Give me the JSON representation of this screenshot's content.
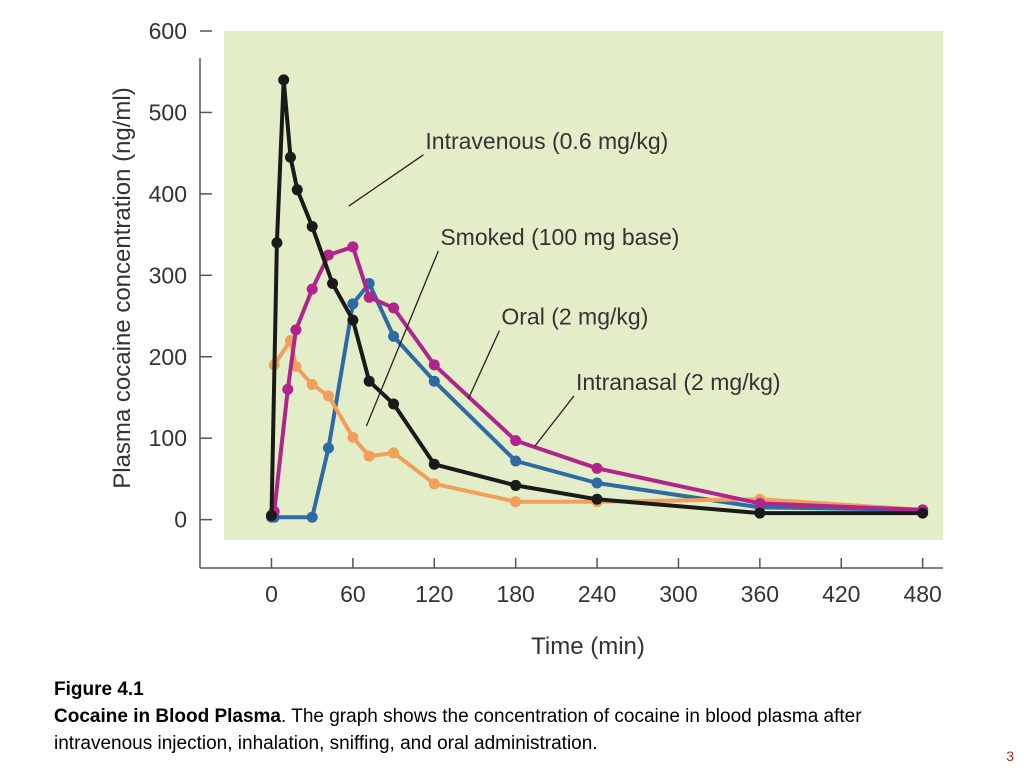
{
  "chart_data": {
    "type": "line",
    "xlabel": "Time (min)",
    "ylabel": "Plasma cocaine concentration (ng/ml)",
    "xlim": [
      -35,
      495
    ],
    "ylim": [
      -25,
      600
    ],
    "xticks": [
      0,
      60,
      120,
      180,
      240,
      300,
      360,
      420,
      480
    ],
    "yticks": [
      0,
      100,
      200,
      300,
      400,
      500,
      600
    ],
    "grid": false,
    "plot_background": "#e3eec8",
    "series": [
      {
        "name": "Intravenous (0.6 mg/kg)",
        "color": "#1a1a1a",
        "x": [
          0,
          4,
          9,
          14,
          19,
          30,
          45,
          60,
          72,
          90,
          120,
          180,
          240,
          360,
          480
        ],
        "y": [
          5,
          340,
          540,
          445,
          405,
          360,
          290,
          245,
          170,
          142,
          68,
          42,
          25,
          8,
          8
        ]
      },
      {
        "name": "Smoked (100 mg base)",
        "color": "#b0248c",
        "x": [
          0,
          2,
          12,
          18,
          30,
          42,
          60,
          72,
          90,
          120,
          180,
          240,
          360,
          480
        ],
        "y": [
          5,
          10,
          160,
          233,
          283,
          325,
          335,
          273,
          260,
          190,
          97,
          63,
          20,
          12
        ]
      },
      {
        "name": "Oral (2 mg/kg)",
        "color": "#2e6aa4",
        "x": [
          0,
          2,
          30,
          42,
          60,
          72,
          90,
          120,
          180,
          240,
          360,
          480
        ],
        "y": [
          3,
          3,
          3,
          88,
          265,
          290,
          225,
          170,
          72,
          45,
          15,
          12
        ]
      },
      {
        "name": "Intranasal (2 mg/kg)",
        "color": "#f0a05a",
        "x": [
          2,
          14,
          18,
          30,
          42,
          60,
          72,
          90,
          120,
          180,
          240,
          360,
          480
        ],
        "y": [
          190,
          220,
          188,
          166,
          152,
          101,
          78,
          82,
          44,
          22,
          22,
          25,
          12
        ]
      }
    ],
    "annotations": [
      {
        "text": "Intravenous (0.6 mg/kg)",
        "series": 0,
        "from": [
          57,
          385
        ],
        "to": [
          112,
          448
        ]
      },
      {
        "text": "Smoked (100 mg base)",
        "series": 1,
        "from": [
          70,
          115
        ],
        "to": [
          123,
          330
        ]
      },
      {
        "text": "Oral (2 mg/kg)",
        "series": 2,
        "from": [
          145,
          148
        ],
        "to": [
          168,
          232
        ]
      },
      {
        "text": "Intranasal (2 mg/kg)",
        "series": 3,
        "from": [
          194,
          90
        ],
        "to": [
          223,
          152
        ]
      }
    ]
  },
  "caption": {
    "figure_number": "Figure 4.1",
    "figure_title": "Cocaine in Blood Plasma",
    "figure_text": ". The graph shows the concentration of cocaine in blood plasma after intravenous injection, inhalation, sniffing, and oral administration."
  },
  "page_number": "3"
}
